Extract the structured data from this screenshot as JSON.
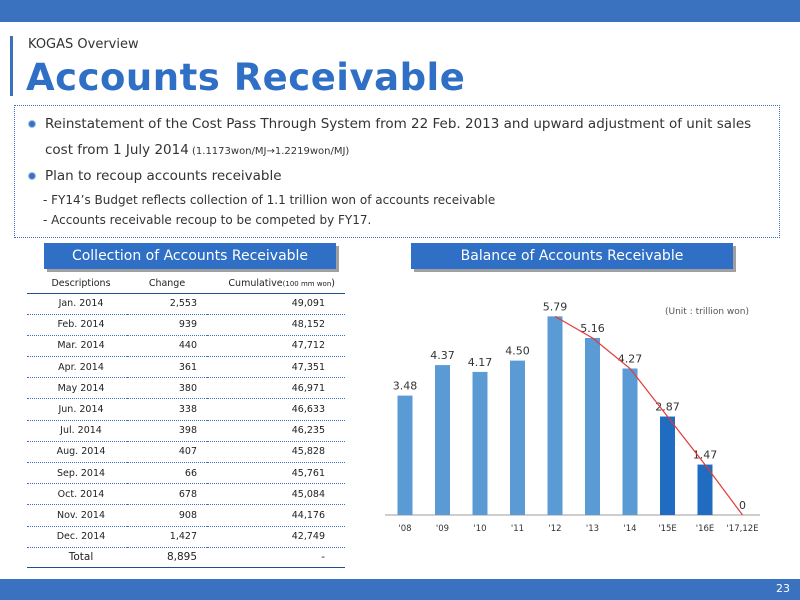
{
  "header": {
    "section": "KOGAS  Overview",
    "title": "Accounts Receivable"
  },
  "bullets": {
    "b1_line1": "Reinstatement of the Cost Pass Through System from 22 Feb. 2013 and upward adjustment of unit sales",
    "b1_line2_main": "cost from 1 July 2014",
    "b1_line2_small": " (1.1173won/MJ→1.2219won/MJ)",
    "b2": "Plan to recoup accounts receivable",
    "sub1": "- FY14’s Budget reflects collection of 1.1 trillion won of accounts receivable",
    "sub2": "- Accounts receivable recoup to be competed by FY17."
  },
  "collection": {
    "title": "Collection of Accounts Receivable",
    "col_desc": "Descriptions",
    "col_change": "Change",
    "col_cum": "Cumulative",
    "col_cum_unit": "(100 mm won",
    "col_cum_close": ")",
    "rows": [
      {
        "desc": "Jan. 2014",
        "change": "2,553",
        "cum": "49,091"
      },
      {
        "desc": "Feb. 2014",
        "change": "939",
        "cum": "48,152"
      },
      {
        "desc": "Mar. 2014",
        "change": "440",
        "cum": "47,712"
      },
      {
        "desc": "Apr. 2014",
        "change": "361",
        "cum": "47,351"
      },
      {
        "desc": "May  2014",
        "change": "380",
        "cum": "46,971"
      },
      {
        "desc": "Jun. 2014",
        "change": "338",
        "cum": "46,633"
      },
      {
        "desc": "Jul. 2014",
        "change": "398",
        "cum": "46,235"
      },
      {
        "desc": "Aug. 2014",
        "change": "407",
        "cum": "45,828"
      },
      {
        "desc": "Sep. 2014",
        "change": "66",
        "cum": "45,761"
      },
      {
        "desc": "Oct. 2014",
        "change": "678",
        "cum": "45,084"
      },
      {
        "desc": "Nov. 2014",
        "change": "908",
        "cum": "44,176"
      },
      {
        "desc": "Dec. 2014",
        "change": "1,427",
        "cum": "42,749"
      }
    ],
    "total": {
      "desc": "Total",
      "change": "8,895",
      "cum": "-"
    }
  },
  "balance": {
    "title": "Balance of Accounts Receivable"
  },
  "chart_data": {
    "type": "bar",
    "title": "Balance of Accounts Receivable",
    "unit": "(Unit : trillion won)",
    "categories": [
      "'08",
      "'09",
      "'10",
      "'11",
      "'12",
      "'13",
      "'14",
      "'15E",
      "'16E",
      "'17,12E"
    ],
    "values": [
      3.48,
      4.37,
      4.17,
      4.5,
      5.79,
      5.16,
      4.27,
      2.87,
      1.47,
      0
    ],
    "value_labels": [
      "3.48",
      "4.37",
      "4.17",
      "4.50",
      "5.79",
      "5.16",
      "4.27",
      "2.87",
      "1.47",
      "0"
    ],
    "bar_colors": [
      "#5b9bd5",
      "#5b9bd5",
      "#5b9bd5",
      "#5b9bd5",
      "#5b9bd5",
      "#5b9bd5",
      "#5b9bd5",
      "#1f6cc0",
      "#1f6cc0",
      "#1f6cc0"
    ],
    "trend_line": {
      "from_index": 4,
      "to_index": 9,
      "color": "#e53935"
    },
    "ylim": [
      0,
      6.5
    ],
    "grid": false,
    "legend": "none"
  },
  "footer": {
    "page_number": "23"
  },
  "colors": {
    "accent": "#3a72c0",
    "title": "#2f6fc5",
    "header_box": "#2f6fc5",
    "trend": "#e53935"
  }
}
